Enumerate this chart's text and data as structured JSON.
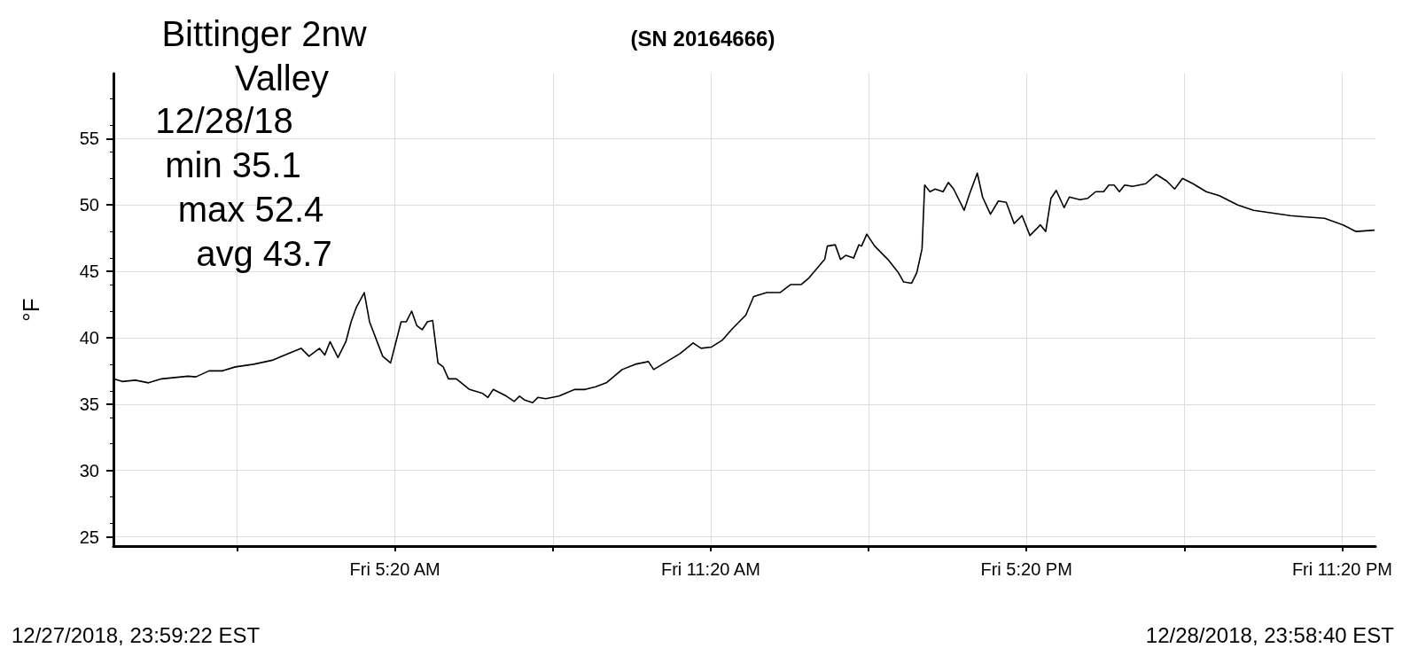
{
  "chart_data": {
    "type": "line",
    "title": "(SN 20164666)",
    "ylabel": "°F",
    "annotations": [
      "Bittinger 2nw",
      "Valley",
      "12/28/18",
      "min 35.1",
      "max 52.4",
      "avg 43.7",
      "12/27/2018, 23:59:22 EST",
      "12/28/2018, 23:58:40 EST"
    ],
    "xlim": [
      "2018-12-27T23:59",
      "2018-12-28T23:58"
    ],
    "ylim": [
      24.3,
      59.9
    ],
    "yticks": [
      25,
      30,
      35,
      40,
      45,
      50,
      55
    ],
    "xticks": [
      {
        "value": "2018-12-28T02:20",
        "label": null
      },
      {
        "value": "2018-12-28T05:20",
        "label": "Fri 5:20 AM"
      },
      {
        "value": "2018-12-28T08:20",
        "label": null
      },
      {
        "value": "2018-12-28T11:20",
        "label": "Fri 11:20 AM"
      },
      {
        "value": "2018-12-28T14:20",
        "label": null
      },
      {
        "value": "2018-12-28T17:20",
        "label": "Fri 5:20 PM"
      },
      {
        "value": "2018-12-28T20:20",
        "label": null
      },
      {
        "value": "2018-12-28T23:20",
        "label": "Fri 11:20 PM"
      }
    ],
    "grid": true,
    "series": [
      {
        "color": "#000000",
        "x": [
          "2018-12-27T23:59",
          "2018-12-28T00:09",
          "2018-12-28T00:24",
          "2018-12-28T00:39",
          "2018-12-28T00:54",
          "2018-12-28T01:09",
          "2018-12-28T01:24",
          "2018-12-28T01:33",
          "2018-12-28T01:48",
          "2018-12-28T02:03",
          "2018-12-28T02:18",
          "2018-12-28T02:39",
          "2018-12-28T03:00",
          "2018-12-28T03:18",
          "2018-12-28T03:33",
          "2018-12-28T03:42",
          "2018-12-28T03:54",
          "2018-12-28T04:00",
          "2018-12-28T04:06",
          "2018-12-28T04:15",
          "2018-12-28T04:24",
          "2018-12-28T04:30",
          "2018-12-28T04:36",
          "2018-12-28T04:45",
          "2018-12-28T04:51",
          "2018-12-28T05:06",
          "2018-12-28T05:15",
          "2018-12-28T05:27",
          "2018-12-28T05:33",
          "2018-12-28T05:39",
          "2018-12-28T05:45",
          "2018-12-28T05:51",
          "2018-12-28T05:57",
          "2018-12-28T06:03",
          "2018-12-28T06:09",
          "2018-12-28T06:15",
          "2018-12-28T06:21",
          "2018-12-28T06:30",
          "2018-12-28T06:45",
          "2018-12-28T07:00",
          "2018-12-28T07:06",
          "2018-12-28T07:12",
          "2018-12-28T07:27",
          "2018-12-28T07:36",
          "2018-12-28T07:42",
          "2018-12-28T07:48",
          "2018-12-28T07:57",
          "2018-12-28T08:03",
          "2018-12-28T08:12",
          "2018-12-28T08:27",
          "2018-12-28T08:45",
          "2018-12-28T08:57",
          "2018-12-28T09:09",
          "2018-12-28T09:21",
          "2018-12-28T09:39",
          "2018-12-28T09:54",
          "2018-12-28T10:09",
          "2018-12-28T10:15",
          "2018-12-28T10:30",
          "2018-12-28T10:45",
          "2018-12-28T11:00",
          "2018-12-28T11:09",
          "2018-12-28T11:21",
          "2018-12-28T11:33",
          "2018-12-28T11:45",
          "2018-12-28T12:00",
          "2018-12-28T12:09",
          "2018-12-28T12:24",
          "2018-12-28T12:39",
          "2018-12-28T12:51",
          "2018-12-28T13:03",
          "2018-12-28T13:12",
          "2018-12-28T13:30",
          "2018-12-28T13:33",
          "2018-12-28T13:42",
          "2018-12-28T13:48",
          "2018-12-28T13:54",
          "2018-12-28T14:03",
          "2018-12-28T14:09",
          "2018-12-28T14:12",
          "2018-12-28T14:18",
          "2018-12-28T14:27",
          "2018-12-28T14:42",
          "2018-12-28T14:54",
          "2018-12-28T15:00",
          "2018-12-28T15:09",
          "2018-12-28T15:15",
          "2018-12-28T15:21",
          "2018-12-28T15:24",
          "2018-12-28T15:30",
          "2018-12-28T15:36",
          "2018-12-28T15:45",
          "2018-12-28T15:51",
          "2018-12-28T15:57",
          "2018-12-28T16:09",
          "2018-12-28T16:15",
          "2018-12-28T16:24",
          "2018-12-28T16:30",
          "2018-12-28T16:39",
          "2018-12-28T16:48",
          "2018-12-28T16:57",
          "2018-12-28T17:06",
          "2018-12-28T17:15",
          "2018-12-28T17:24",
          "2018-12-28T17:36",
          "2018-12-28T17:42",
          "2018-12-28T17:48",
          "2018-12-28T17:54",
          "2018-12-28T18:03",
          "2018-12-28T18:09",
          "2018-12-28T18:21",
          "2018-12-28T18:30",
          "2018-12-28T18:39",
          "2018-12-28T18:48",
          "2018-12-28T18:54",
          "2018-12-28T19:00",
          "2018-12-28T19:06",
          "2018-12-28T19:12",
          "2018-12-28T19:21",
          "2018-12-28T19:36",
          "2018-12-28T19:48",
          "2018-12-28T20:00",
          "2018-12-28T20:09",
          "2018-12-28T20:18",
          "2018-12-28T20:30",
          "2018-12-28T20:45",
          "2018-12-28T21:00",
          "2018-12-28T21:21",
          "2018-12-28T21:39",
          "2018-12-28T22:00",
          "2018-12-28T22:21",
          "2018-12-28T22:39",
          "2018-12-28T23:00",
          "2018-12-28T23:21",
          "2018-12-28T23:36",
          "2018-12-28T23:57"
        ],
        "values": [
          36.9,
          36.7,
          36.8,
          36.6,
          36.9,
          37.0,
          37.1,
          37.05,
          37.5,
          37.5,
          37.8,
          38.0,
          38.3,
          38.8,
          39.2,
          38.6,
          39.2,
          38.7,
          39.7,
          38.5,
          39.7,
          41.2,
          42.3,
          43.4,
          41.2,
          38.6,
          38.1,
          41.2,
          41.2,
          42.0,
          40.9,
          40.6,
          41.2,
          41.3,
          38.1,
          37.8,
          36.9,
          36.9,
          36.1,
          35.8,
          35.5,
          36.1,
          35.6,
          35.2,
          35.6,
          35.3,
          35.1,
          35.5,
          35.4,
          35.6,
          36.1,
          36.1,
          36.3,
          36.6,
          37.6,
          38.0,
          38.2,
          37.6,
          38.2,
          38.8,
          39.6,
          39.2,
          39.3,
          39.8,
          40.7,
          41.7,
          43.1,
          43.4,
          43.4,
          44.0,
          44.0,
          44.5,
          45.9,
          46.9,
          47.0,
          45.9,
          46.2,
          46.0,
          47.0,
          46.9,
          47.8,
          46.9,
          45.9,
          44.9,
          44.2,
          44.1,
          44.9,
          46.7,
          51.5,
          51.0,
          51.2,
          51.0,
          51.7,
          51.2,
          49.6,
          50.8,
          52.4,
          50.6,
          49.3,
          50.3,
          50.2,
          48.6,
          49.2,
          47.7,
          48.5,
          48.0,
          50.5,
          51.1,
          49.8,
          50.6,
          50.4,
          50.5,
          51.0,
          51.0,
          51.5,
          51.5,
          51.0,
          51.5,
          51.4,
          51.6,
          52.3,
          51.8,
          51.2,
          52.0,
          51.6,
          51.0,
          50.7,
          50.0,
          49.6,
          49.4,
          49.2,
          49.1,
          49.0,
          48.5,
          48.0,
          48.1
        ]
      }
    ]
  }
}
